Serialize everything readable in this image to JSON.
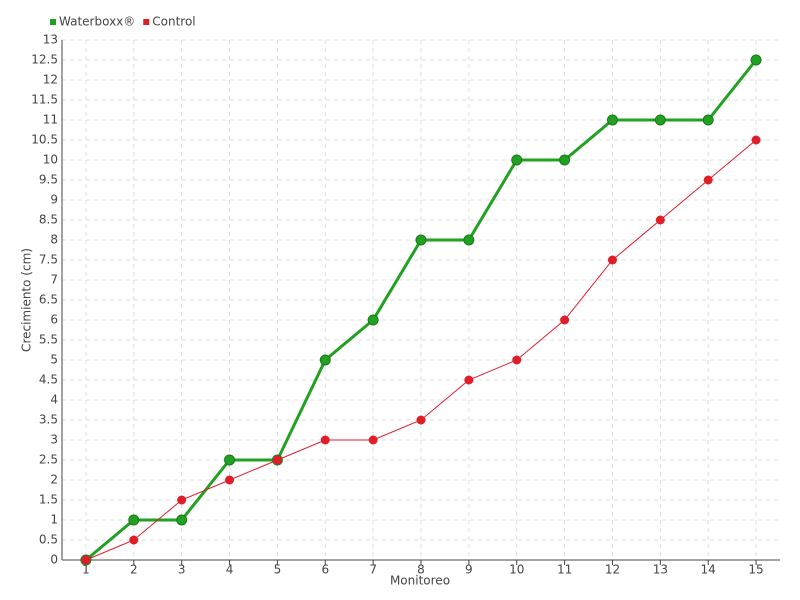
{
  "chart_data": {
    "type": "line",
    "x_label": "Monitoreo",
    "y_label": "Crecimiento (cm)",
    "categories": [
      "1",
      "2",
      "3",
      "4",
      "5",
      "6",
      "7",
      "8",
      "9",
      "10",
      "11",
      "12",
      "13",
      "14",
      "15"
    ],
    "series": [
      {
        "name": "Waterboxx®",
        "color": "#22a022",
        "values": [
          0,
          1,
          1,
          2.5,
          2.5,
          5,
          6,
          8,
          8,
          10,
          10,
          11,
          11,
          11,
          12.5
        ]
      },
      {
        "name": "Control",
        "color": "#e01e2a",
        "values": [
          0,
          0.5,
          1.5,
          2,
          2.5,
          3,
          3,
          3.5,
          4.5,
          5,
          6,
          7.5,
          8.5,
          9.5,
          10.5
        ]
      }
    ],
    "ylim": [
      0,
      13
    ],
    "yticks": [
      0,
      0.5,
      1,
      1.5,
      2,
      2.5,
      3,
      3.5,
      4,
      4.5,
      5,
      5.5,
      6,
      6.5,
      7,
      7.5,
      8,
      8.5,
      9,
      9.5,
      10,
      10.5,
      11,
      11.5,
      12,
      12.5,
      13
    ],
    "grid": true,
    "legend": "top-left"
  }
}
